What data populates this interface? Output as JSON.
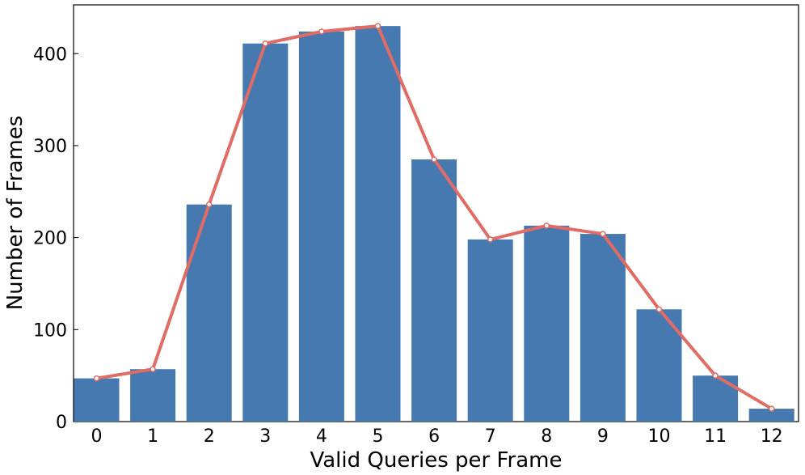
{
  "chart_data": {
    "type": "bar",
    "overlay": "line",
    "xlabel": "Valid Queries per Frame",
    "ylabel": "Number of Frames",
    "categories": [
      "0",
      "1",
      "2",
      "3",
      "4",
      "5",
      "6",
      "7",
      "8",
      "9",
      "10",
      "11",
      "12"
    ],
    "values": [
      47,
      57,
      236,
      411,
      424,
      430,
      285,
      198,
      213,
      204,
      122,
      50,
      14
    ],
    "color": "#4679b0",
    "line_color": "#e06c65",
    "ylim": [
      0,
      453
    ],
    "yticks": [
      0,
      100,
      200,
      300,
      400
    ],
    "grid": false
  }
}
